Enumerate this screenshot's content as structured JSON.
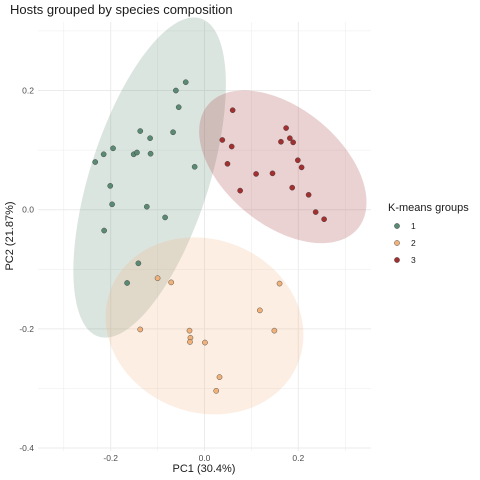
{
  "chart_data": {
    "type": "scatter",
    "title": "Hosts grouped by species composition",
    "xlabel": "PC1 (30.4%)",
    "ylabel": "PC2 (21.87%)",
    "xlim": [
      -0.355,
      0.355
    ],
    "ylim": [
      -0.405,
      0.315
    ],
    "x_ticks": [
      -0.2,
      0.0,
      0.2
    ],
    "x_tick_labels": [
      "-0.2",
      "0.0",
      "0.2"
    ],
    "y_ticks": [
      -0.4,
      -0.2,
      0.0,
      0.2
    ],
    "y_tick_labels": [
      "-0.4",
      "-0.2",
      "0.0",
      "0.2"
    ],
    "grid": true,
    "legend": {
      "title": "K-means groups",
      "position": "right"
    },
    "series": [
      {
        "name": "1",
        "color": "#5a8a74",
        "ellipse": {
          "cx": -0.117,
          "cy": 0.054,
          "rx": 0.289,
          "ry": 0.123,
          "angle_deg": 66
        },
        "points": [
          [
            -0.04,
            0.214
          ],
          [
            -0.061,
            0.2
          ],
          [
            -0.055,
            0.172
          ],
          [
            -0.137,
            0.132
          ],
          [
            -0.116,
            0.12
          ],
          [
            -0.067,
            0.13
          ],
          [
            -0.195,
            0.103
          ],
          [
            -0.215,
            0.093
          ],
          [
            -0.233,
            0.08
          ],
          [
            -0.151,
            0.093
          ],
          [
            -0.144,
            0.096
          ],
          [
            -0.115,
            0.094
          ],
          [
            -0.021,
            0.072
          ],
          [
            -0.201,
            0.04
          ],
          [
            -0.197,
            0.009
          ],
          [
            -0.123,
            0.005
          ],
          [
            -0.084,
            -0.013
          ],
          [
            -0.214,
            -0.035
          ],
          [
            -0.141,
            -0.09
          ],
          [
            -0.165,
            -0.123
          ]
        ]
      },
      {
        "name": "2",
        "color": "#f0b27a",
        "ellipse": {
          "cx": 0.0,
          "cy": -0.195,
          "rx": 0.212,
          "ry": 0.147,
          "angle_deg": -8
        },
        "points": [
          [
            -0.1,
            -0.115
          ],
          [
            -0.071,
            -0.122
          ],
          [
            0.16,
            -0.124
          ],
          [
            0.118,
            -0.169
          ],
          [
            -0.137,
            -0.201
          ],
          [
            0.149,
            -0.203
          ],
          [
            -0.032,
            -0.203
          ],
          [
            -0.03,
            -0.215
          ],
          [
            -0.031,
            -0.222
          ],
          [
            0.001,
            -0.223
          ],
          [
            0.032,
            -0.281
          ],
          [
            0.025,
            -0.304
          ]
        ]
      },
      {
        "name": "3",
        "color": "#a33030",
        "ellipse": {
          "cx": 0.167,
          "cy": 0.072,
          "rx": 0.193,
          "ry": 0.105,
          "angle_deg": -27
        },
        "points": [
          [
            0.06,
            0.167
          ],
          [
            0.174,
            0.137
          ],
          [
            0.038,
            0.117
          ],
          [
            0.182,
            0.12
          ],
          [
            0.163,
            0.114
          ],
          [
            0.058,
            0.106
          ],
          [
            0.189,
            0.113
          ],
          [
            0.199,
            0.083
          ],
          [
            0.049,
            0.077
          ],
          [
            0.207,
            0.071
          ],
          [
            0.11,
            0.06
          ],
          [
            0.145,
            0.061
          ],
          [
            0.076,
            0.032
          ],
          [
            0.187,
            0.037
          ],
          [
            0.222,
            0.025
          ],
          [
            0.237,
            -0.004
          ],
          [
            0.255,
            -0.016
          ]
        ]
      }
    ]
  }
}
